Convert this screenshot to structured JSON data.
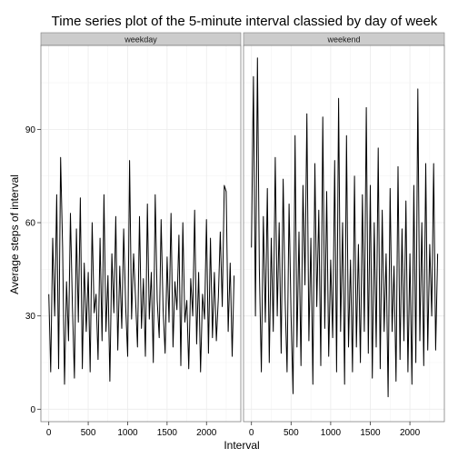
{
  "chart_data": {
    "type": "line",
    "title": "Time series plot of the 5-minute interval classied by day of week",
    "xlabel": "Interval",
    "ylabel": "Average steps of interval",
    "xlim": [
      -100,
      2435
    ],
    "ylim": [
      -4,
      117
    ],
    "xticks": [
      0,
      500,
      1000,
      1500,
      2000
    ],
    "yticks": [
      0,
      30,
      60,
      90
    ],
    "grid": true,
    "colors": {
      "line": "#000000",
      "strip_fill": "#cccccc",
      "panel_border": "#7f7f7f",
      "grid": "#ebebeb"
    },
    "panels": [
      {
        "label": "weekday",
        "x": [
          0,
          25,
          50,
          75,
          100,
          125,
          150,
          175,
          200,
          225,
          250,
          275,
          300,
          325,
          350,
          375,
          400,
          425,
          450,
          475,
          500,
          525,
          550,
          575,
          600,
          625,
          650,
          675,
          700,
          725,
          750,
          775,
          800,
          825,
          850,
          875,
          900,
          925,
          950,
          975,
          1000,
          1025,
          1050,
          1075,
          1100,
          1125,
          1150,
          1175,
          1200,
          1225,
          1250,
          1275,
          1300,
          1325,
          1350,
          1375,
          1400,
          1425,
          1450,
          1475,
          1500,
          1525,
          1550,
          1575,
          1600,
          1625,
          1650,
          1675,
          1700,
          1725,
          1750,
          1775,
          1800,
          1825,
          1850,
          1875,
          1900,
          1925,
          1950,
          1975,
          2000,
          2025,
          2050,
          2075,
          2100,
          2125,
          2150,
          2175,
          2200,
          2225,
          2250,
          2275,
          2300,
          2325,
          2350
        ],
        "values": [
          37,
          12,
          55,
          30,
          69,
          13,
          81,
          52,
          8,
          41,
          22,
          63,
          33,
          10,
          58,
          28,
          68,
          13,
          47,
          25,
          44,
          12,
          60,
          31,
          37,
          16,
          55,
          22,
          69,
          25,
          43,
          9,
          50,
          31,
          62,
          19,
          46,
          26,
          58,
          33,
          17,
          80,
          29,
          50,
          36,
          20,
          62,
          26,
          42,
          17,
          66,
          29,
          44,
          15,
          69,
          35,
          23,
          61,
          32,
          18,
          49,
          28,
          63,
          20,
          41,
          32,
          56,
          14,
          60,
          28,
          35,
          13,
          42,
          30,
          64,
          21,
          44,
          12,
          37,
          29,
          61,
          18,
          55,
          23,
          44,
          22,
          36,
          57,
          33,
          72,
          70,
          25,
          47,
          17,
          43
        ]
      },
      {
        "label": "weekend",
        "x": [
          0,
          25,
          50,
          75,
          100,
          125,
          150,
          175,
          200,
          225,
          250,
          275,
          300,
          325,
          350,
          375,
          400,
          425,
          450,
          475,
          500,
          525,
          550,
          575,
          600,
          625,
          650,
          675,
          700,
          725,
          750,
          775,
          800,
          825,
          850,
          875,
          900,
          925,
          950,
          975,
          1000,
          1025,
          1050,
          1075,
          1100,
          1125,
          1150,
          1175,
          1200,
          1225,
          1250,
          1275,
          1300,
          1325,
          1350,
          1375,
          1400,
          1425,
          1450,
          1475,
          1500,
          1525,
          1550,
          1575,
          1600,
          1625,
          1650,
          1675,
          1700,
          1725,
          1750,
          1775,
          1800,
          1825,
          1850,
          1875,
          1900,
          1925,
          1950,
          1975,
          2000,
          2025,
          2050,
          2075,
          2100,
          2125,
          2150,
          2175,
          2200,
          2225,
          2250,
          2275,
          2300,
          2325,
          2350
        ],
        "values": [
          52,
          107,
          30,
          113,
          45,
          12,
          62,
          28,
          71,
          15,
          55,
          25,
          81,
          30,
          60,
          18,
          74,
          35,
          12,
          66,
          30,
          5,
          88,
          20,
          57,
          14,
          72,
          40,
          95,
          22,
          55,
          8,
          79,
          33,
          64,
          14,
          94,
          26,
          70,
          17,
          48,
          23,
          80,
          12,
          100,
          25,
          60,
          8,
          88,
          20,
          48,
          12,
          75,
          20,
          53,
          15,
          69,
          25,
          97,
          18,
          72,
          10,
          60,
          20,
          84,
          13,
          64,
          25,
          50,
          4,
          71,
          25,
          46,
          9,
          78,
          16,
          58,
          22,
          67,
          12,
          50,
          8,
          72,
          15,
          103,
          22,
          60,
          14,
          79,
          19,
          53,
          30,
          79,
          19,
          50
        ]
      }
    ]
  }
}
